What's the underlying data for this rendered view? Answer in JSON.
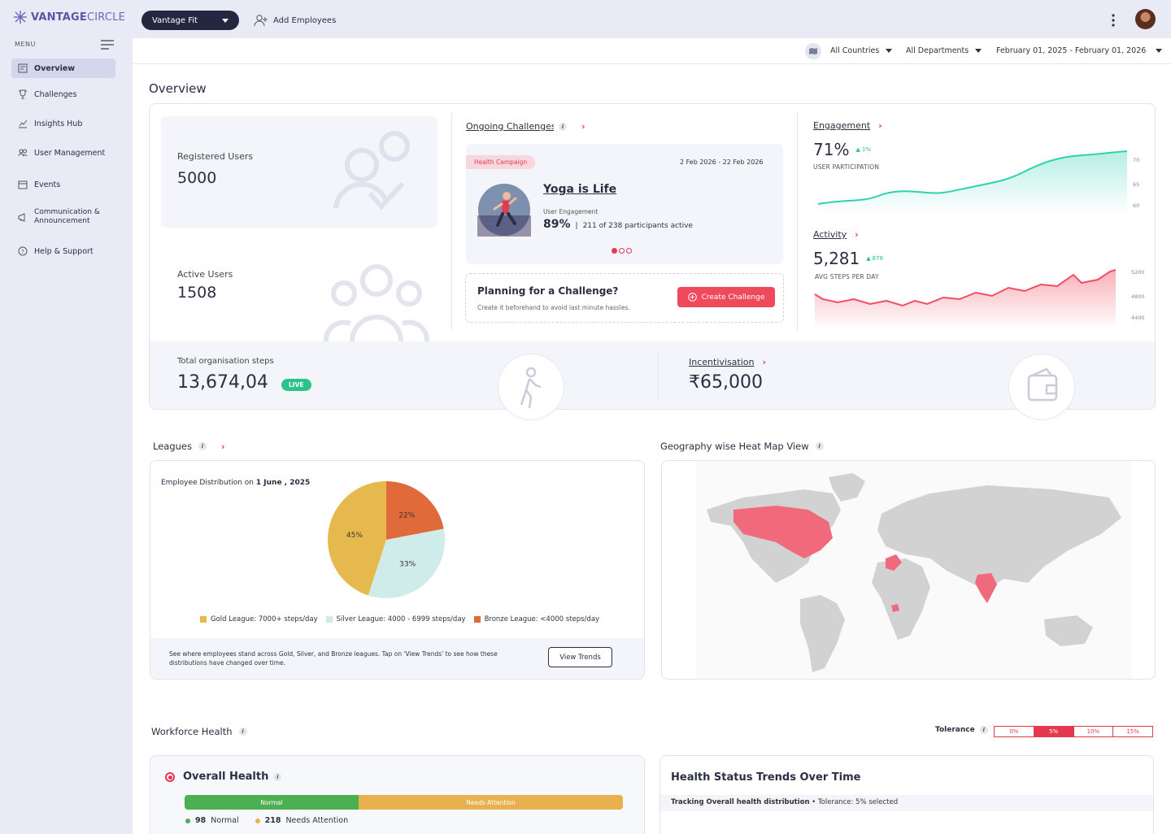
{
  "brand": {
    "name_bold": "VANTAGE",
    "name_light": "CIRCLE"
  },
  "sidebar": {
    "menu_label": "MENU",
    "items": [
      {
        "label": "Overview",
        "icon": "overview-icon",
        "active": true
      },
      {
        "label": "Challenges",
        "icon": "trophy-icon"
      },
      {
        "label": "Insights Hub",
        "icon": "chart-icon"
      },
      {
        "label": "User Management",
        "icon": "users-icon"
      },
      {
        "label": "Events",
        "icon": "calendar-icon"
      },
      {
        "label": "Communication & Announcement",
        "icon": "megaphone-icon"
      },
      {
        "label": "Help & Support",
        "icon": "help-icon"
      }
    ]
  },
  "header": {
    "program": "Vantage Fit",
    "add_employees": "Add Employees"
  },
  "filters": {
    "country": "All Countries",
    "department": "All Departments",
    "date_range": "February 01, 2025 - February 01, 2026"
  },
  "page_title": "Overview",
  "stats": {
    "registered_label": "Registered Users",
    "registered_value": "5000",
    "active_label": "Active Users",
    "active_value": "1508",
    "steps_label": "Total organisation steps",
    "steps_value": "13,674,04",
    "live": "LIVE",
    "incentive_label": "Incentivisation",
    "incentive_value": "₹65,000"
  },
  "challenge": {
    "section": "Ongoing Challenges",
    "tag": "Health Campaign",
    "dates": "2 Feb 2026 - 22 Feb 2026",
    "name": "Yoga is Life",
    "engagement_label": "User Engagement",
    "engagement_pct": "89%",
    "participants": "211 of 238 participants active",
    "plan_title": "Planning for a Challenge?",
    "plan_sub": "Create it beforehand to avoid last minute hassles.",
    "create_btn": "Create Challenge"
  },
  "engagement": {
    "title": "Engagement",
    "value": "71%",
    "delta": "1%",
    "sub": "USER PARTICIPATION",
    "ticks": [
      "70",
      "65",
      "60"
    ]
  },
  "activity": {
    "title": "Activity",
    "value": "5,281",
    "delta": "876",
    "sub": "AVG STEPS PER DAY",
    "ticks": [
      "5200",
      "4800",
      "4400"
    ]
  },
  "leagues": {
    "title": "Leagues",
    "dist_label": "Employee Distribution on",
    "dist_date": "1 June , 2025",
    "footer": "See where employees stand across Gold, Silver, and Bronze leagues. Tap on 'View Trends' to see how these distributions have changed over time.",
    "view_trends": "View Trends"
  },
  "chart_data": {
    "type": "pie",
    "categories": [
      "Gold League: 7000+ steps/day",
      "Silver League: 4000 - 6999 steps/day",
      "Bronze League: <4000 steps/day"
    ],
    "values": [
      45,
      33,
      22
    ],
    "labels": [
      "45%",
      "33%",
      "22%"
    ],
    "colors": [
      "#e6b94f",
      "#cfeceb",
      "#e06a3a"
    ]
  },
  "geo": {
    "title": "Geography wise Heat Map View"
  },
  "workforce": {
    "title": "Workforce Health",
    "tolerance_label": "Tolerance",
    "tolerance_options": [
      "0%",
      "5%",
      "10%",
      "15%"
    ],
    "overall_title": "Overall Health",
    "normal_label": "Normal",
    "attention_label": "Needs Attention",
    "normal_count": "98",
    "attention_count": "218",
    "trend_title": "Health Status Trends Over Time",
    "trend_sub_bold": "Tracking Overall health distribution",
    "trend_sub": " • Tolerance: 5% selected"
  },
  "colors": {
    "accent": "#e53950",
    "dark": "#23273f",
    "green": "#2bc38a"
  }
}
